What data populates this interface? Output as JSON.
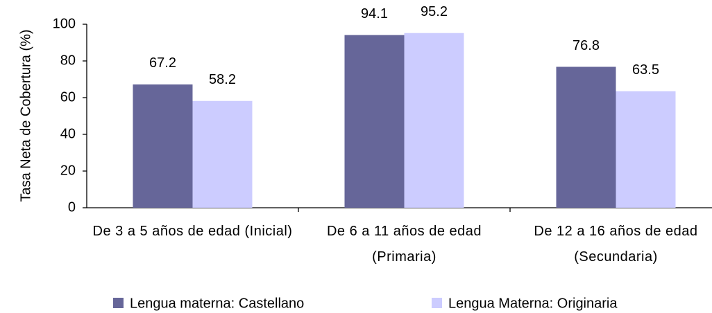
{
  "chart_data": {
    "type": "bar",
    "y_label": "Tasa Neta de Cobertura (%)",
    "categories": [
      "De 3 a 5 años de edad (Inicial)",
      "De 6 a 11 años de edad (Primaria)",
      "De 12 a 16 años de edad (Secundaria)"
    ],
    "series": [
      {
        "name": "Lengua materna: Castellano",
        "color": "#666699",
        "values": [
          67.2,
          94.1,
          76.8
        ]
      },
      {
        "name": "Lengua Materna: Originaria",
        "color": "#ccccff",
        "values": [
          58.2,
          95.2,
          63.5
        ]
      }
    ],
    "ylim": [
      0,
      100
    ],
    "yticks": [
      0,
      20,
      40,
      60,
      80,
      100
    ],
    "grid": false,
    "legend": "bottom"
  }
}
